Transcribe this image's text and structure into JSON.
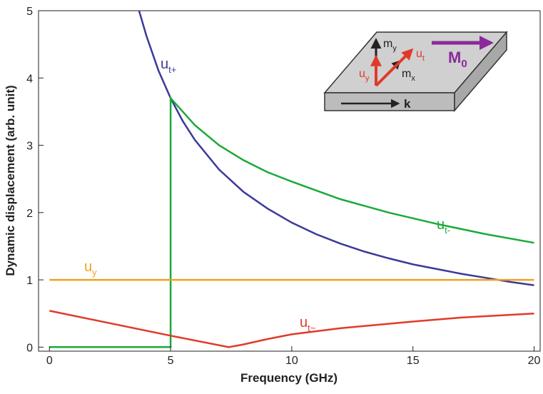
{
  "chart_data": {
    "type": "line",
    "xlabel": "Frequency (GHz)",
    "ylabel": "Dynamic displacement (arb. unit)",
    "xlim": [
      -0.45,
      20.25
    ],
    "ylim": [
      -0.06,
      5
    ],
    "xticks": [
      0,
      5,
      10,
      15,
      20
    ],
    "yticks": [
      0,
      1,
      2,
      3,
      4,
      5
    ],
    "series": [
      {
        "name": "u",
        "subscript": "t+",
        "color": "#3a3a9a",
        "x": [
          3.7,
          4,
          4.5,
          5,
          5.5,
          6,
          7,
          8,
          9,
          10,
          11,
          12,
          13,
          14,
          15,
          16,
          17,
          18,
          19,
          20
        ],
        "values": [
          5.0,
          4.63,
          4.11,
          3.7,
          3.36,
          3.08,
          2.64,
          2.31,
          2.06,
          1.85,
          1.68,
          1.54,
          1.42,
          1.32,
          1.23,
          1.16,
          1.09,
          1.03,
          0.97,
          0.92
        ]
      },
      {
        "name": "u",
        "subscript": "t-",
        "color": "#1aaa3a",
        "x": [
          0,
          5,
          5,
          6,
          7,
          8,
          9,
          10,
          12,
          14,
          16,
          18,
          20
        ],
        "values": [
          0,
          0,
          3.7,
          3.3,
          3.0,
          2.78,
          2.6,
          2.46,
          2.2,
          2.0,
          1.83,
          1.68,
          1.55
        ]
      },
      {
        "name": "u",
        "subscript": "y",
        "color": "#f0a020",
        "x": [
          0,
          20
        ],
        "values": [
          1,
          1
        ]
      },
      {
        "name": "u",
        "subscript": "t~",
        "color": "#e03a2a",
        "x": [
          0,
          5,
          7.4,
          8,
          9,
          10,
          12,
          15,
          17,
          20
        ],
        "values": [
          0.54,
          0.17,
          0,
          0.04,
          0.12,
          0.19,
          0.28,
          0.38,
          0.44,
          0.5
        ]
      }
    ]
  },
  "inset": {
    "m": "m",
    "my_sub": "y",
    "mx_sub": "x",
    "u": "u",
    "ut_sub": "t",
    "uy_sub": "y",
    "M": "M",
    "M_sub": "0",
    "k": "k"
  }
}
